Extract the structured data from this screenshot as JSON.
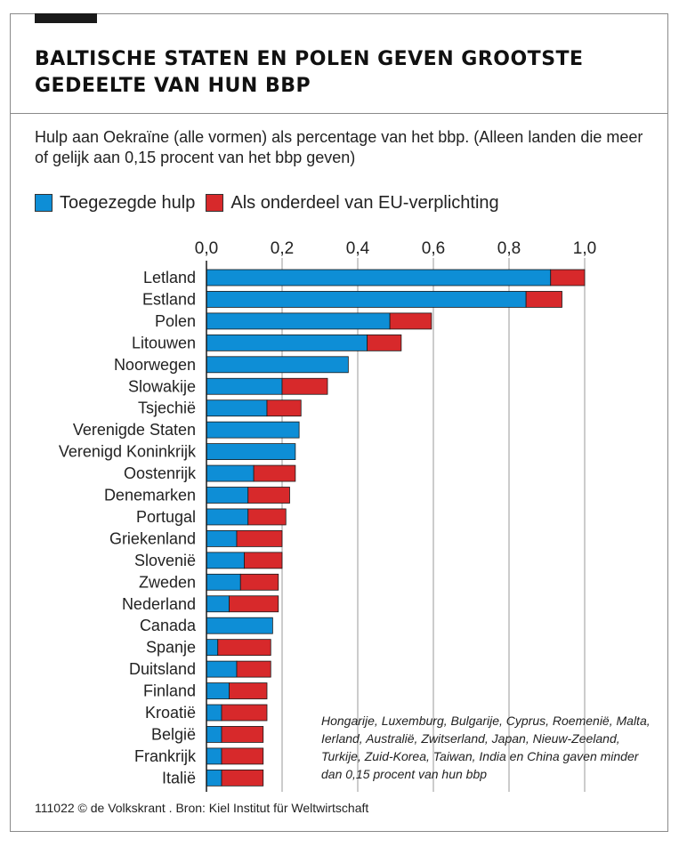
{
  "title": "BALTISCHE STATEN EN POLEN GEVEN GROOTSTE GEDEELTE VAN HUN BBP",
  "subtitle": "Hulp aan Oekraïne (alle vormen) als percentage van het bbp. (Alleen landen die meer of gelijk aan 0,15 procent van het bbp geven)",
  "note": "Hongarije, Luxemburg, Bulgarije, Cyprus, Roemenië, Malta, Ierland, Australië, Zwitserland, Japan, Nieuw-Zeeland, Turkije, Zuid-Korea, Taiwan, India en China gaven minder dan 0,15 procent van hun bbp",
  "source": "111022 © de Volkskrant . Bron: Kiel Institut für Weltwirtschaft",
  "colors": {
    "committed": "#0e8ed6",
    "eu": "#d7292b",
    "gridline": "#9a9a9a",
    "text": "#1a1a1a"
  },
  "chart_data": {
    "type": "bar",
    "orientation": "horizontal",
    "stacked": true,
    "xlim": [
      0,
      1.0
    ],
    "ticks": [
      "0,0",
      "0,2",
      "0,4",
      "0,6",
      "0,8",
      "1,0"
    ],
    "tick_values": [
      0,
      0.2,
      0.4,
      0.6,
      0.8,
      1.0
    ],
    "grid": true,
    "legend_position": "top-left",
    "categories": [
      "Letland",
      "Estland",
      "Polen",
      "Litouwen",
      "Noorwegen",
      "Slowakije",
      "Tsjechië",
      "Verenigde Staten",
      "Verenigd Koninkrijk",
      "Oostenrijk",
      "Denemarken",
      "Portugal",
      "Griekenland",
      "Slovenië",
      "Zweden",
      "Nederland",
      "Canada",
      "Spanje",
      "Duitsland",
      "Finland",
      "Kroatië",
      "België",
      "Frankrijk",
      "Italië"
    ],
    "series": [
      {
        "name": "Toegezegde hulp",
        "values": [
          0.91,
          0.845,
          0.485,
          0.425,
          0.375,
          0.2,
          0.16,
          0.245,
          0.235,
          0.125,
          0.11,
          0.11,
          0.08,
          0.1,
          0.09,
          0.06,
          0.175,
          0.03,
          0.08,
          0.06,
          0.04,
          0.04,
          0.04,
          0.04
        ]
      },
      {
        "name": "Als onderdeel van EU-verplichting",
        "values": [
          0.09,
          0.095,
          0.11,
          0.09,
          0.0,
          0.12,
          0.09,
          0.0,
          0.0,
          0.11,
          0.11,
          0.1,
          0.12,
          0.1,
          0.1,
          0.13,
          0.0,
          0.14,
          0.09,
          0.1,
          0.12,
          0.11,
          0.11,
          0.11
        ]
      }
    ]
  }
}
